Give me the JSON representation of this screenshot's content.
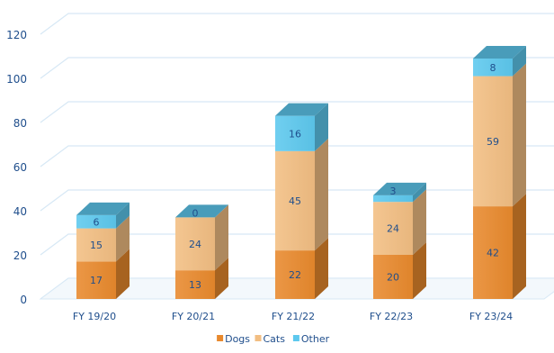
{
  "chart_data": {
    "type": "bar",
    "stacked": true,
    "three_d": true,
    "categories": [
      "FY 19/20",
      "FY 20/21",
      "FY 21/22",
      "FY 22/23",
      "FY 23/24"
    ],
    "series": [
      {
        "name": "Dogs",
        "values": [
          17,
          13,
          22,
          20,
          42
        ],
        "color": "#E8892D"
      },
      {
        "name": "Cats",
        "values": [
          15,
          24,
          45,
          24,
          59
        ],
        "color": "#F2BE82"
      },
      {
        "name": "Other",
        "values": [
          6,
          0,
          16,
          3,
          8
        ],
        "color": "#5DC8EE"
      }
    ],
    "yticks": [
      0,
      20,
      40,
      60,
      80,
      100,
      120
    ],
    "ylim": [
      0,
      120
    ],
    "grid": true,
    "legend_position": "bottom",
    "colors": {
      "axis_text": "#1F4E8C",
      "grid": "#D7E8F5",
      "value_label": "#1F4E8C"
    }
  }
}
